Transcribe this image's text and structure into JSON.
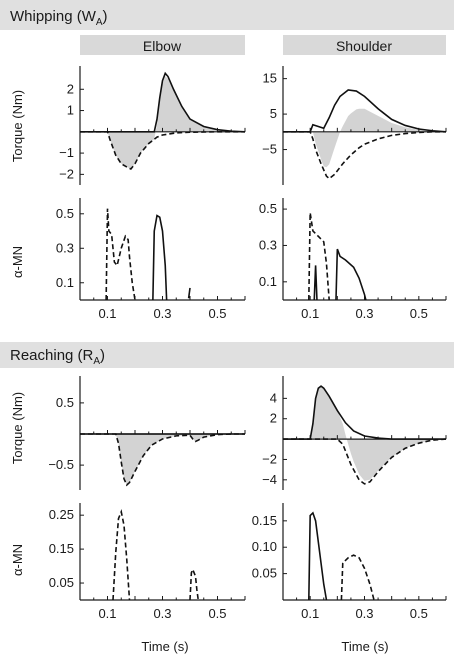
{
  "figure": {
    "sections": [
      {
        "label_main": "Whipping (W",
        "label_sub": "A",
        "label_end": ")"
      },
      {
        "label_main": "Reaching (R",
        "label_sub": "A",
        "label_end": ")"
      }
    ],
    "column_headers": [
      "Elbow",
      "Shoulder"
    ],
    "ylabel_torque": "Torque (Nm)",
    "ylabel_mn": "α-MN",
    "xlabel": "Time (s)",
    "x_tick_labels": [
      "0.1",
      "0.3",
      "0.5"
    ],
    "colors": {
      "section_banner": "#e0e0e0",
      "column_header": "#d9d9d9",
      "shade": "#d3d3d3",
      "line": "#111111"
    }
  },
  "chart_data": [
    {
      "id": "whip-elbow-torque",
      "section": "Whipping",
      "column": "Elbow",
      "type": "line",
      "xlabel": "",
      "ylabel": "Torque (Nm)",
      "xlim": [
        0,
        0.6
      ],
      "ylim": [
        -2.5,
        3
      ],
      "yticks": [
        2,
        1,
        -1,
        -2
      ],
      "ytick_labels": [
        "2",
        "1",
        "−1",
        "−2"
      ],
      "shaded_area": true,
      "series": [
        {
          "style": "solid",
          "x": [
            0,
            0.27,
            0.28,
            0.29,
            0.3,
            0.31,
            0.32,
            0.34,
            0.37,
            0.4,
            0.45,
            0.5,
            0.55,
            0.6
          ],
          "y": [
            0,
            0,
            0.6,
            1.6,
            2.4,
            2.75,
            2.6,
            2.0,
            1.2,
            0.6,
            0.25,
            0.1,
            0.03,
            0
          ]
        },
        {
          "style": "dashed",
          "x": [
            0,
            0.1,
            0.11,
            0.13,
            0.15,
            0.17,
            0.185,
            0.2,
            0.22,
            0.25,
            0.28,
            0.3,
            0.35,
            0.4,
            0.5,
            0.6
          ],
          "y": [
            0,
            0,
            -0.4,
            -1.1,
            -1.5,
            -1.65,
            -1.75,
            -1.5,
            -1.0,
            -0.55,
            -0.25,
            -0.15,
            -0.05,
            -0.02,
            0,
            0
          ]
        }
      ]
    },
    {
      "id": "whip-shoulder-torque",
      "section": "Whipping",
      "column": "Shoulder",
      "type": "line",
      "xlabel": "",
      "ylabel": "",
      "xlim": [
        0,
        0.6
      ],
      "ylim": [
        -15,
        18
      ],
      "yticks": [
        15,
        5,
        -5
      ],
      "ytick_labels": [
        "15",
        "5",
        "−5"
      ],
      "shaded_area": true,
      "series": [
        {
          "style": "solid",
          "x": [
            0,
            0.1,
            0.11,
            0.13,
            0.15,
            0.17,
            0.19,
            0.21,
            0.24,
            0.27,
            0.3,
            0.35,
            0.4,
            0.45,
            0.5,
            0.55,
            0.6
          ],
          "y": [
            0,
            0,
            2.0,
            1.5,
            1.0,
            4,
            7.5,
            10.0,
            11.8,
            11.5,
            10.0,
            6.5,
            3.5,
            1.8,
            0.8,
            0.3,
            0
          ]
        },
        {
          "style": "dashed",
          "x": [
            0,
            0.1,
            0.11,
            0.12,
            0.14,
            0.16,
            0.17,
            0.19,
            0.22,
            0.25,
            0.28,
            0.3,
            0.35,
            0.4,
            0.45,
            0.5,
            0.55,
            0.6
          ],
          "y": [
            0,
            0,
            -2,
            -5,
            -9,
            -12.5,
            -13.2,
            -12.0,
            -9.0,
            -6.5,
            -4.5,
            -3.5,
            -2,
            -1,
            -0.5,
            -0.2,
            0,
            0
          ]
        }
      ]
    },
    {
      "id": "whip-elbow-mn",
      "section": "Whipping",
      "column": "Elbow",
      "type": "line",
      "xlabel": "",
      "ylabel": "α-MN",
      "xlim": [
        0,
        0.6
      ],
      "ylim": [
        0,
        0.58
      ],
      "yticks": [
        0.5,
        0.3,
        0.1
      ],
      "ytick_labels": [
        "0.5",
        "0.3",
        "0.1"
      ],
      "series": [
        {
          "style": "dashed",
          "x": [
            0.095,
            0.1,
            0.105,
            0.115,
            0.125,
            0.135,
            0.15,
            0.165,
            0.175,
            0.18,
            0.19,
            0.2
          ],
          "y": [
            0,
            0.53,
            0.4,
            0.38,
            0.22,
            0.2,
            0.3,
            0.37,
            0.35,
            0.25,
            0.1,
            0
          ]
        },
        {
          "style": "solid",
          "x": [
            0.265,
            0.27,
            0.28,
            0.29,
            0.3,
            0.31,
            0.315
          ],
          "y": [
            0,
            0.4,
            0.49,
            0.48,
            0.4,
            0.2,
            0
          ]
        },
        {
          "style": "solid",
          "x": [
            0.395,
            0.4
          ],
          "y": [
            0.01,
            0.07
          ]
        }
      ]
    },
    {
      "id": "whip-shoulder-mn",
      "section": "Whipping",
      "column": "Shoulder",
      "type": "line",
      "xlabel": "",
      "ylabel": "",
      "xlim": [
        0,
        0.6
      ],
      "ylim": [
        0,
        0.55
      ],
      "yticks": [
        0.5,
        0.3,
        0.1
      ],
      "ytick_labels": [
        "0.5",
        "0.3",
        "0.1"
      ],
      "series": [
        {
          "style": "dashed",
          "x": [
            0.095,
            0.1,
            0.11,
            0.13,
            0.15,
            0.16,
            0.17
          ],
          "y": [
            0,
            0.48,
            0.38,
            0.35,
            0.32,
            0.2,
            0
          ]
        },
        {
          "style": "solid",
          "x": [
            0.115,
            0.12,
            0.125
          ],
          "y": [
            0,
            0.19,
            0
          ]
        },
        {
          "style": "solid",
          "x": [
            0.195,
            0.2,
            0.21,
            0.23,
            0.26,
            0.28,
            0.3,
            0.305
          ],
          "y": [
            0,
            0.28,
            0.24,
            0.22,
            0.18,
            0.12,
            0.03,
            0
          ]
        }
      ]
    },
    {
      "id": "reach-elbow-torque",
      "section": "Reaching",
      "column": "Elbow",
      "type": "line",
      "xlabel": "",
      "ylabel": "Torque (Nm)",
      "xlim": [
        0,
        0.6
      ],
      "ylim": [
        -0.9,
        0.9
      ],
      "yticks": [
        0.5,
        -0.5
      ],
      "ytick_labels": [
        "0.5",
        "−0.5"
      ],
      "shaded_area": true,
      "series": [
        {
          "style": "solid",
          "x": [
            0,
            0.6
          ],
          "y": [
            0,
            0
          ]
        },
        {
          "style": "dashed",
          "x": [
            0,
            0.13,
            0.14,
            0.15,
            0.16,
            0.17,
            0.18,
            0.2,
            0.23,
            0.26,
            0.3,
            0.35,
            0.4,
            0.41,
            0.42,
            0.43,
            0.45,
            0.5,
            0.55,
            0.6
          ],
          "y": [
            0,
            0,
            -0.15,
            -0.45,
            -0.72,
            -0.82,
            -0.78,
            -0.6,
            -0.35,
            -0.18,
            -0.08,
            -0.03,
            -0.02,
            -0.08,
            -0.12,
            -0.1,
            -0.05,
            -0.01,
            0,
            0
          ]
        }
      ]
    },
    {
      "id": "reach-shoulder-torque",
      "section": "Reaching",
      "column": "Shoulder",
      "type": "line",
      "xlabel": "",
      "ylabel": "",
      "xlim": [
        0,
        0.6
      ],
      "ylim": [
        -5,
        6
      ],
      "yticks": [
        4,
        2,
        -2,
        -4
      ],
      "ytick_labels": [
        "4",
        "2",
        "−2",
        "−4"
      ],
      "shaded_area": true,
      "series": [
        {
          "style": "solid",
          "x": [
            0,
            0.1,
            0.11,
            0.12,
            0.13,
            0.14,
            0.15,
            0.17,
            0.2,
            0.23,
            0.26,
            0.3,
            0.35,
            0.4,
            0.5,
            0.6
          ],
          "y": [
            0,
            0,
            1.5,
            4.0,
            5.0,
            5.2,
            5.0,
            4.2,
            2.8,
            1.6,
            0.8,
            0.3,
            0.1,
            0,
            0,
            0
          ]
        },
        {
          "style": "dashed",
          "x": [
            0,
            0.2,
            0.22,
            0.25,
            0.28,
            0.3,
            0.32,
            0.35,
            0.4,
            0.45,
            0.5,
            0.55,
            0.6
          ],
          "y": [
            0,
            0,
            -0.5,
            -2.5,
            -4.0,
            -4.4,
            -4.2,
            -3.2,
            -1.8,
            -0.9,
            -0.4,
            -0.1,
            0
          ]
        }
      ]
    },
    {
      "id": "reach-elbow-mn",
      "section": "Reaching",
      "column": "Elbow",
      "type": "line",
      "xlabel": "Time (s)",
      "ylabel": "α-MN",
      "xlim": [
        0,
        0.6
      ],
      "ylim": [
        0,
        0.28
      ],
      "yticks": [
        0.25,
        0.15,
        0.05
      ],
      "ytick_labels": [
        "0.25",
        "0.15",
        "0.05"
      ],
      "xticks": [
        0.1,
        0.3,
        0.5
      ],
      "xtick_labels": [
        "0.1",
        "0.3",
        "0.5"
      ],
      "series": [
        {
          "style": "dashed",
          "x": [
            0.12,
            0.13,
            0.14,
            0.15,
            0.16,
            0.17,
            0.18
          ],
          "y": [
            0,
            0.14,
            0.24,
            0.26,
            0.22,
            0.12,
            0
          ]
        },
        {
          "style": "dashed",
          "x": [
            0.4,
            0.405,
            0.41,
            0.42,
            0.425,
            0.43
          ],
          "y": [
            0,
            0.08,
            0.09,
            0.07,
            0.03,
            0
          ]
        }
      ]
    },
    {
      "id": "reach-shoulder-mn",
      "section": "Reaching",
      "column": "Shoulder",
      "type": "line",
      "xlabel": "Time (s)",
      "ylabel": "",
      "xlim": [
        0,
        0.6
      ],
      "ylim": [
        0,
        0.18
      ],
      "yticks": [
        0.15,
        0.1,
        0.05
      ],
      "ytick_labels": [
        "0.15",
        "0.10",
        "0.05"
      ],
      "xticks": [
        0.1,
        0.3,
        0.5
      ],
      "xtick_labels": [
        "0.1",
        "0.3",
        "0.5"
      ],
      "series": [
        {
          "style": "solid",
          "x": [
            0.095,
            0.1,
            0.11,
            0.12,
            0.13,
            0.14,
            0.15,
            0.16
          ],
          "y": [
            0,
            0.16,
            0.165,
            0.15,
            0.11,
            0.07,
            0.03,
            0
          ]
        },
        {
          "style": "dashed",
          "x": [
            0.215,
            0.22,
            0.24,
            0.26,
            0.28,
            0.3,
            0.32,
            0.335
          ],
          "y": [
            0,
            0.07,
            0.08,
            0.085,
            0.08,
            0.06,
            0.03,
            0
          ]
        }
      ]
    }
  ]
}
